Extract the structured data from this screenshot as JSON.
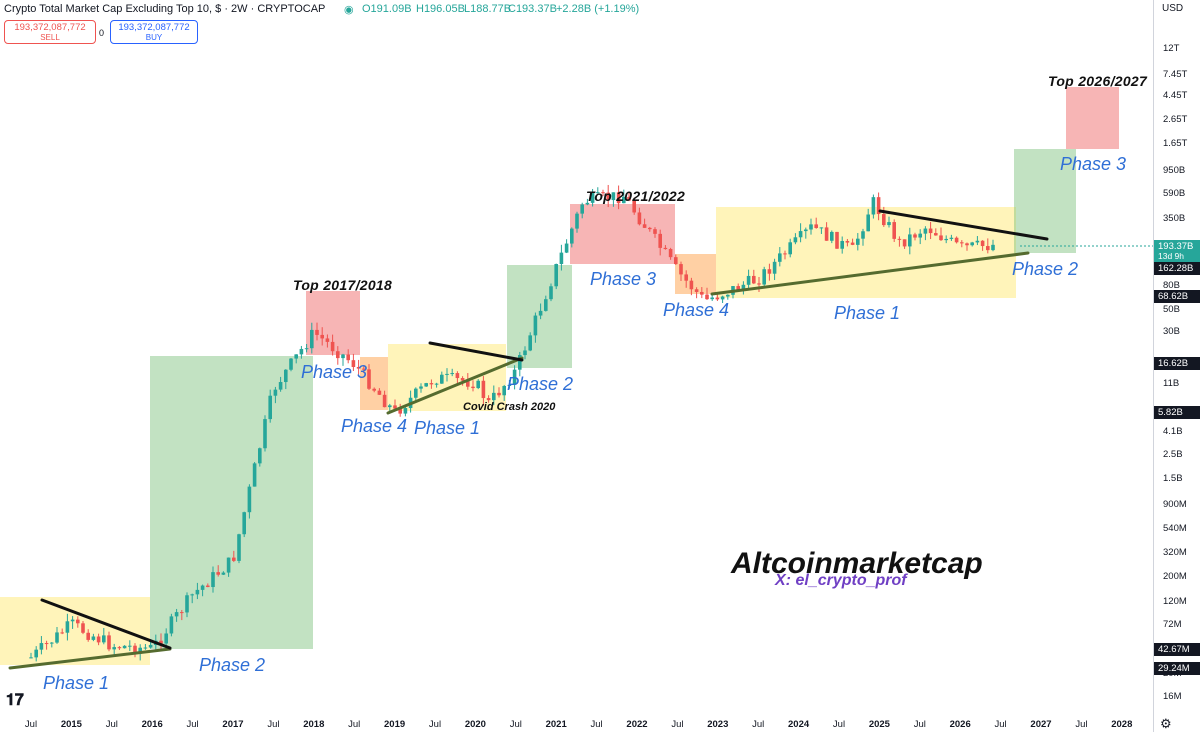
{
  "header": {
    "title": "Crypto Total Market Cap Excluding Top 10, $ · 2W · CRYPTOCAP",
    "ohlc_o": "O191.09B",
    "ohlc_h": "H196.05B",
    "ohlc_l": "L188.77B",
    "ohlc_c": "C193.37B",
    "change": "+2.28B (+1.19%)",
    "currency": "USD"
  },
  "trade": {
    "sell_value": "193,372,087,772",
    "sell_label": "SELL",
    "spread": "0",
    "buy_value": "193,372,087,772",
    "buy_label": "BUY"
  },
  "colors": {
    "up": "#26a69a",
    "down": "#ef5350",
    "phase_text": "#2f6fd6",
    "box_yellow": "rgba(255,235,130,0.55)",
    "box_green": "rgba(120,190,120,0.45)",
    "box_red": "rgba(240,120,120,0.55)",
    "box_orange": "rgba(255,170,90,0.55)"
  },
  "axis": {
    "y_labels": [
      "12T",
      "7.45T",
      "4.45T",
      "2.65T",
      "1.65T",
      "950B",
      "590B",
      "350B",
      "80B",
      "50B",
      "30B",
      "11B",
      "4.1B",
      "2.5B",
      "1.5B",
      "900M",
      "540M",
      "320M",
      "200M",
      "120M",
      "72M",
      "20M",
      "16M"
    ],
    "y_tags": [
      {
        "text": "193.37B",
        "sub": "13d 9h",
        "color": "#26a69a"
      },
      {
        "text": "162.28B",
        "color": "#131722"
      },
      {
        "text": "68.62B",
        "color": "#131722"
      },
      {
        "text": "16.62B",
        "color": "#131722"
      },
      {
        "text": "5.82B",
        "color": "#131722"
      },
      {
        "text": "42.67M",
        "color": "#131722"
      },
      {
        "text": "29.24M",
        "color": "#131722"
      }
    ],
    "x_labels": [
      {
        "t": "Jul",
        "b": false
      },
      {
        "t": "2015",
        "b": true
      },
      {
        "t": "Jul",
        "b": false
      },
      {
        "t": "2016",
        "b": true
      },
      {
        "t": "Jul",
        "b": false
      },
      {
        "t": "2017",
        "b": true
      },
      {
        "t": "Jul",
        "b": false
      },
      {
        "t": "2018",
        "b": true
      },
      {
        "t": "Jul",
        "b": false
      },
      {
        "t": "2019",
        "b": true
      },
      {
        "t": "Jul",
        "b": false
      },
      {
        "t": "2020",
        "b": true
      },
      {
        "t": "Jul",
        "b": false
      },
      {
        "t": "2021",
        "b": true
      },
      {
        "t": "Jul",
        "b": false
      },
      {
        "t": "2022",
        "b": true
      },
      {
        "t": "Jul",
        "b": false
      },
      {
        "t": "2023",
        "b": true
      },
      {
        "t": "Jul",
        "b": false
      },
      {
        "t": "2024",
        "b": true
      },
      {
        "t": "Jul",
        "b": false
      },
      {
        "t": "2025",
        "b": true
      },
      {
        "t": "Jul",
        "b": false
      },
      {
        "t": "2026",
        "b": true
      },
      {
        "t": "Jul",
        "b": false
      },
      {
        "t": "2027",
        "b": true
      },
      {
        "t": "Jul",
        "b": false
      },
      {
        "t": "2028",
        "b": true
      }
    ]
  },
  "annotations": {
    "top_2017": "Top 2017/2018",
    "top_2021": "Top 2021/2022",
    "top_2026": "Top 2026/2027",
    "phase1_a": "Phase 1",
    "phase2_a": "Phase 2",
    "phase3_a": "Phase 3",
    "phase4_a": "Phase 4",
    "phase1_b": "Phase 1",
    "phase2_b": "Phase 2",
    "phase3_b": "Phase 3",
    "phase4_b": "Phase 4",
    "phase1_c": "Phase 1",
    "phase2_c": "Phase 2",
    "phase3_c": "Phase 3",
    "covid": "Covid Crash 2020",
    "brand": "Altcoinmarketcap",
    "handle": "X: el_crypto_prof"
  },
  "chart_data": {
    "type": "line",
    "y_scale": "log",
    "ylabel_units": "USD",
    "x": [
      "2014-07",
      "2015-01",
      "2015-07",
      "2016-01",
      "2016-07",
      "2017-01",
      "2017-07",
      "2018-01",
      "2018-07",
      "2019-01",
      "2019-07",
      "2020-01",
      "2020-03",
      "2020-07",
      "2021-01",
      "2021-05",
      "2021-11",
      "2022-07",
      "2022-11",
      "2023-07",
      "2024-03",
      "2024-09",
      "2024-12",
      "2025-04",
      "2025-08",
      "2026-01",
      "2026-06"
    ],
    "series": [
      {
        "values": [
          35000000,
          70000000,
          45000000,
          42000000,
          130000000,
          270000000,
          9500000000,
          31000000000,
          16000000000,
          5800000000,
          12000000000,
          11000000000,
          7000000000,
          14000000000,
          120000000000,
          480000000000,
          540000000000,
          110000000000,
          60000000000,
          95000000000,
          280000000000,
          170000000000,
          480000000000,
          200000000000,
          280000000000,
          180000000000,
          193370000000
        ]
      }
    ],
    "last_close": "193.37B"
  }
}
